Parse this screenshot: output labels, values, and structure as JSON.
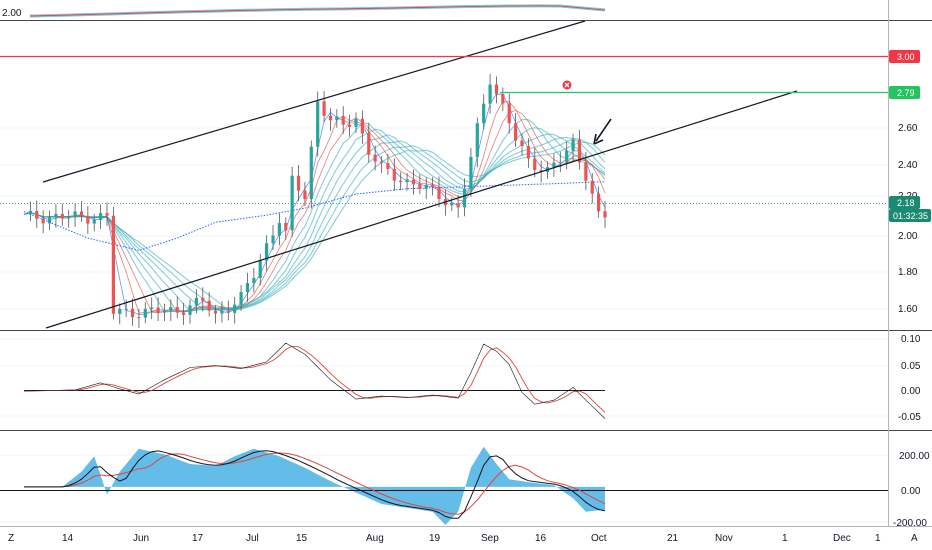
{
  "colors": {
    "resistance": "#f23645",
    "target": "#22c55e",
    "last_price": "#1b8a72",
    "channel": "#131722",
    "ribbon": "#26a6b5",
    "sma": "#2962ff",
    "histogram": "#64bde8",
    "signal": "#e0463c",
    "up_candle": "#26a69a",
    "down_candle": "#ef5350",
    "grid": "#f0f3fa"
  },
  "icons": {
    "close_marker": "close-icon",
    "arrow": "arrow-down-left-icon"
  },
  "top_strip": {
    "tick": "2.00"
  },
  "price_axis": {
    "ticks": [
      "2.60",
      "2.40",
      "2.20",
      "2.00",
      "1.80",
      "1.60"
    ],
    "badges": {
      "resistance": "3.00",
      "target": "2.79",
      "last_price": "2.18",
      "countdown": "01:32:35"
    }
  },
  "oscillator_1": {
    "ticks": [
      "0.10",
      "0.05",
      "0.00",
      "-0.05"
    ]
  },
  "oscillator_2": {
    "ticks": [
      "200.00",
      "0.00",
      "-200.00"
    ]
  },
  "time_axis": {
    "labels": [
      "14",
      "Jun",
      "17",
      "Jul",
      "15",
      "Aug",
      "19",
      "Sep",
      "16",
      "Oct",
      "21",
      "Nov",
      "1",
      "Dec",
      "1"
    ],
    "corner_left": "Z",
    "corner_right": "A"
  },
  "chart_data": {
    "type": "line",
    "horizontal_levels": [
      {
        "value": 3.0,
        "color": "red"
      },
      {
        "value": 2.79,
        "color": "green"
      }
    ],
    "last_price": 2.18,
    "price_range": [
      1.55,
      3.09
    ],
    "price_path": [
      [
        14,
        1.64
      ],
      [
        18,
        1.64
      ],
      [
        24,
        1.65
      ],
      [
        28,
        1.7
      ],
      [
        30,
        1.62
      ],
      [
        34,
        1.72
      ],
      [
        36,
        1.85
      ],
      [
        38,
        2.02
      ],
      [
        40,
        2.17
      ],
      [
        41,
        2.08
      ],
      [
        42,
        2.38
      ],
      [
        44,
        2.3
      ],
      [
        46,
        2.84
      ],
      [
        48,
        2.72
      ],
      [
        50,
        2.7
      ],
      [
        52,
        2.74
      ],
      [
        54,
        2.55
      ],
      [
        56,
        2.45
      ],
      [
        60,
        2.38
      ],
      [
        63,
        2.34
      ],
      [
        66,
        2.28
      ],
      [
        68,
        2.22
      ],
      [
        69,
        2.35
      ],
      [
        71,
        2.68
      ],
      [
        73,
        2.97
      ],
      [
        75,
        2.8
      ],
      [
        77,
        2.62
      ],
      [
        79,
        2.5
      ],
      [
        82,
        2.44
      ],
      [
        84,
        2.5
      ],
      [
        86,
        2.6
      ],
      [
        88,
        2.42
      ],
      [
        89,
        2.3
      ],
      [
        90,
        2.18
      ],
      [
        91,
        2.18
      ]
    ],
    "sma_path": [
      [
        0,
        2.21
      ],
      [
        10,
        2.06
      ],
      [
        18,
        1.99
      ],
      [
        24,
        2.06
      ],
      [
        30,
        2.15
      ],
      [
        38,
        2.19
      ],
      [
        44,
        2.23
      ],
      [
        52,
        2.31
      ],
      [
        60,
        2.34
      ],
      [
        68,
        2.35
      ],
      [
        76,
        2.36
      ],
      [
        84,
        2.37
      ],
      [
        91,
        2.38
      ]
    ],
    "oscillator_1": [
      [
        0,
        -0.002
      ],
      [
        8,
        0.0
      ],
      [
        12,
        0.014
      ],
      [
        15,
        0.002
      ],
      [
        18,
        -0.008
      ],
      [
        22,
        0.02
      ],
      [
        26,
        0.044
      ],
      [
        30,
        0.048
      ],
      [
        34,
        0.042
      ],
      [
        38,
        0.055
      ],
      [
        41,
        0.092
      ],
      [
        44,
        0.07
      ],
      [
        48,
        0.02
      ],
      [
        52,
        -0.018
      ],
      [
        56,
        -0.012
      ],
      [
        60,
        -0.015
      ],
      [
        64,
        -0.01
      ],
      [
        68,
        -0.016
      ],
      [
        70,
        0.034
      ],
      [
        72,
        0.09
      ],
      [
        74,
        0.076
      ],
      [
        76,
        0.05
      ],
      [
        78,
        -0.005
      ],
      [
        80,
        -0.028
      ],
      [
        83,
        -0.02
      ],
      [
        86,
        0.005
      ],
      [
        88,
        -0.02
      ],
      [
        91,
        -0.056
      ]
    ],
    "oscillator_2": [
      [
        0,
        0
      ],
      [
        6,
        0
      ],
      [
        9,
        80
      ],
      [
        11,
        160
      ],
      [
        13,
        -40
      ],
      [
        15,
        80
      ],
      [
        18,
        200
      ],
      [
        22,
        170
      ],
      [
        26,
        120
      ],
      [
        30,
        110
      ],
      [
        33,
        160
      ],
      [
        36,
        200
      ],
      [
        40,
        160
      ],
      [
        44,
        100
      ],
      [
        48,
        30
      ],
      [
        52,
        -30
      ],
      [
        56,
        -90
      ],
      [
        60,
        -110
      ],
      [
        64,
        -130
      ],
      [
        66,
        -200
      ],
      [
        68,
        -130
      ],
      [
        70,
        100
      ],
      [
        72,
        210
      ],
      [
        74,
        120
      ],
      [
        76,
        40
      ],
      [
        80,
        20
      ],
      [
        83,
        10
      ],
      [
        86,
        -60
      ],
      [
        88,
        -130
      ],
      [
        91,
        -120
      ]
    ],
    "oscillator_2_range": [
      -200,
      230
    ]
  }
}
